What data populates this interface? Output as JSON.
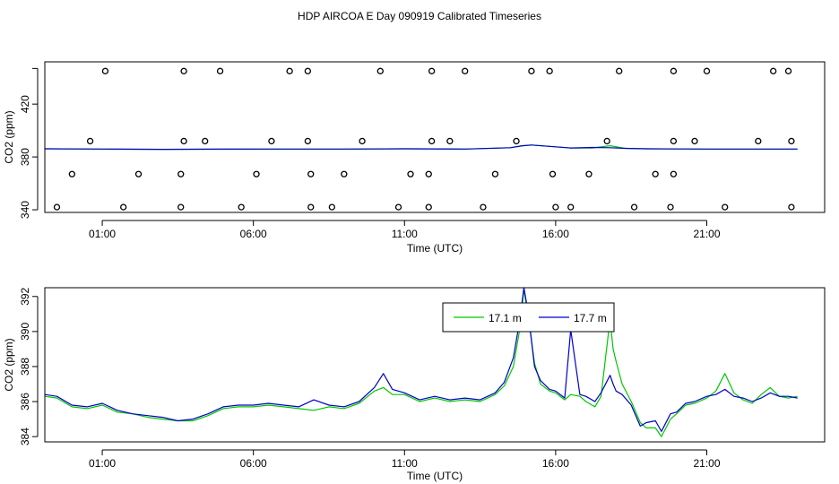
{
  "figure": {
    "title": "HDP AIRCOA E  Day 090919  Calibrated Timeseries"
  },
  "chart_data": [
    {
      "type": "scatter",
      "xlabel": "Time (UTC)",
      "ylabel": "CO2 (ppm)",
      "xlim": [
        -0.9,
        24.9
      ],
      "ylim": [
        338,
        452
      ],
      "xticks": [
        1,
        6,
        11,
        16,
        21
      ],
      "xtick_labels": [
        "01:00",
        "06:00",
        "11:00",
        "16:00",
        "21:00"
      ],
      "yticks": [
        340,
        380,
        420
      ],
      "ytick_labels": [
        "340",
        "380",
        "420"
      ],
      "extra_ytick": 447,
      "series": [
        {
          "label": "calibration-markers",
          "color": "#000000",
          "points": [
            [
              1.1,
              445
            ],
            [
              3.7,
              445
            ],
            [
              4.9,
              445
            ],
            [
              7.2,
              445
            ],
            [
              7.8,
              445
            ],
            [
              10.2,
              445
            ],
            [
              11.9,
              445
            ],
            [
              13.0,
              445
            ],
            [
              15.2,
              445
            ],
            [
              15.8,
              445
            ],
            [
              18.1,
              445
            ],
            [
              19.9,
              445
            ],
            [
              21.0,
              445
            ],
            [
              23.2,
              445
            ],
            [
              23.7,
              445
            ],
            [
              0.6,
              392
            ],
            [
              3.7,
              392
            ],
            [
              4.4,
              392
            ],
            [
              6.6,
              392
            ],
            [
              7.8,
              392
            ],
            [
              9.6,
              392
            ],
            [
              11.9,
              392
            ],
            [
              12.5,
              392
            ],
            [
              14.7,
              392
            ],
            [
              17.7,
              392
            ],
            [
              19.9,
              392
            ],
            [
              20.6,
              392
            ],
            [
              22.7,
              392
            ],
            [
              23.8,
              392
            ],
            [
              0.0,
              367
            ],
            [
              2.2,
              367
            ],
            [
              3.6,
              367
            ],
            [
              6.1,
              367
            ],
            [
              7.9,
              367
            ],
            [
              9.0,
              367
            ],
            [
              11.2,
              367
            ],
            [
              11.8,
              367
            ],
            [
              14.0,
              367
            ],
            [
              15.9,
              367
            ],
            [
              17.1,
              367
            ],
            [
              19.3,
              367
            ],
            [
              19.9,
              367
            ],
            [
              -0.5,
              342
            ],
            [
              1.7,
              342
            ],
            [
              3.6,
              342
            ],
            [
              5.6,
              342
            ],
            [
              7.9,
              342
            ],
            [
              8.6,
              342
            ],
            [
              10.8,
              342
            ],
            [
              11.8,
              342
            ],
            [
              13.6,
              342
            ],
            [
              16.0,
              342
            ],
            [
              16.5,
              342
            ],
            [
              18.6,
              342
            ],
            [
              19.8,
              342
            ],
            [
              21.6,
              342
            ],
            [
              23.8,
              342
            ]
          ]
        },
        {
          "label": "17.1 m",
          "color": "#00c800",
          "x": [
            -0.9,
            1,
            3,
            5,
            7,
            9,
            11,
            13,
            14.5,
            14.9,
            15.2,
            15.8,
            16.5,
            17.2,
            17.8,
            18.3,
            19,
            21,
            23,
            24
          ],
          "y": [
            386.2,
            386,
            385.8,
            385.9,
            386,
            386,
            386.2,
            386,
            387,
            388.5,
            389,
            388,
            386.8,
            386.8,
            388.5,
            386.5,
            386.2,
            386,
            386,
            386
          ]
        },
        {
          "label": "17.7 m",
          "color": "#0000c8",
          "x": [
            -0.9,
            1,
            3,
            5,
            7,
            9,
            11,
            13,
            14.5,
            14.9,
            15.2,
            15.8,
            16.5,
            17.2,
            17.8,
            18.3,
            19,
            21,
            23,
            24
          ],
          "y": [
            386.2,
            386,
            385.8,
            385.9,
            386,
            386,
            386.2,
            386,
            387,
            388.5,
            389,
            388,
            386.8,
            387.2,
            387,
            386.5,
            386.2,
            386,
            386,
            386
          ]
        }
      ]
    },
    {
      "type": "line",
      "xlabel": "Time (UTC)",
      "ylabel": "CO2 (ppm)",
      "xlim": [
        -0.9,
        24.9
      ],
      "ylim": [
        383.7,
        392.5
      ],
      "xticks": [
        1,
        6,
        11,
        16,
        21
      ],
      "xtick_labels": [
        "01:00",
        "06:00",
        "11:00",
        "16:00",
        "21:00"
      ],
      "yticks": [
        384,
        386,
        388,
        390,
        392
      ],
      "ytick_labels": [
        "384",
        "386",
        "388",
        "390",
        "392"
      ],
      "legend": {
        "position": "top-center"
      },
      "series": [
        {
          "name": "17.1 m",
          "color": "#00c800",
          "x": [
            -0.9,
            -0.5,
            0,
            0.5,
            1,
            1.5,
            2,
            2.5,
            3,
            3.5,
            4,
            4.5,
            5,
            5.5,
            6,
            6.5,
            7,
            7.5,
            8,
            8.5,
            9,
            9.5,
            10,
            10.3,
            10.6,
            11,
            11.5,
            12,
            12.5,
            13,
            13.5,
            14,
            14.3,
            14.6,
            14.8,
            14.95,
            15.1,
            15.3,
            15.5,
            15.8,
            16,
            16.3,
            16.5,
            16.8,
            17,
            17.3,
            17.5,
            17.8,
            17.9,
            18,
            18.2,
            18.5,
            18.8,
            19,
            19.3,
            19.5,
            19.8,
            20,
            20.3,
            20.6,
            21,
            21.3,
            21.6,
            21.9,
            22.2,
            22.5,
            22.8,
            23.1,
            23.4,
            23.7,
            24
          ],
          "y": [
            386.3,
            386.2,
            385.7,
            385.6,
            385.8,
            385.4,
            385.3,
            385.1,
            385.0,
            384.9,
            384.9,
            385.2,
            385.6,
            385.7,
            385.7,
            385.8,
            385.7,
            385.6,
            385.5,
            385.7,
            385.6,
            385.9,
            386.6,
            386.8,
            386.4,
            386.4,
            386.0,
            386.2,
            386.0,
            386.1,
            386.0,
            386.4,
            386.9,
            388.0,
            390.0,
            392.4,
            390.8,
            388.2,
            387.0,
            386.6,
            386.5,
            386.1,
            386.4,
            386.3,
            386.0,
            385.7,
            386.3,
            390.7,
            389.0,
            388.3,
            387.0,
            386.0,
            384.8,
            384.5,
            384.5,
            384.0,
            385.0,
            385.3,
            385.8,
            385.9,
            386.2,
            386.6,
            387.6,
            386.5,
            386.1,
            385.9,
            386.4,
            386.8,
            386.3,
            386.2,
            386.3
          ]
        },
        {
          "name": "17.7 m",
          "color": "#0000c8",
          "x": [
            -0.9,
            -0.5,
            0,
            0.5,
            1,
            1.5,
            2,
            2.5,
            3,
            3.5,
            4,
            4.5,
            5,
            5.5,
            6,
            6.5,
            7,
            7.5,
            8,
            8.5,
            9,
            9.5,
            10,
            10.3,
            10.6,
            11,
            11.5,
            12,
            12.5,
            13,
            13.5,
            14,
            14.3,
            14.6,
            14.8,
            14.95,
            15.1,
            15.3,
            15.5,
            15.8,
            16,
            16.3,
            16.5,
            16.8,
            17,
            17.3,
            17.5,
            17.8,
            17.9,
            18,
            18.2,
            18.5,
            18.8,
            19,
            19.3,
            19.5,
            19.8,
            20,
            20.3,
            20.6,
            21,
            21.3,
            21.6,
            21.9,
            22.2,
            22.5,
            22.8,
            23.1,
            23.4,
            23.7,
            24
          ],
          "y": [
            386.4,
            386.3,
            385.8,
            385.7,
            385.9,
            385.5,
            385.3,
            385.2,
            385.1,
            384.9,
            385.0,
            385.3,
            385.7,
            385.8,
            385.8,
            385.9,
            385.8,
            385.7,
            386.1,
            385.8,
            385.7,
            386.0,
            386.8,
            387.6,
            386.7,
            386.5,
            386.1,
            386.3,
            386.1,
            386.2,
            386.1,
            386.5,
            387.1,
            388.5,
            390.5,
            392.5,
            391.0,
            388.0,
            387.2,
            386.7,
            386.6,
            386.2,
            390.1,
            386.4,
            386.3,
            386.0,
            386.5,
            387.5,
            387.0,
            386.6,
            386.4,
            385.8,
            384.6,
            384.8,
            384.9,
            384.3,
            385.3,
            385.4,
            385.9,
            386.0,
            386.3,
            386.4,
            386.7,
            386.3,
            386.2,
            386.0,
            386.2,
            386.5,
            386.3,
            386.3,
            386.2
          ]
        }
      ]
    }
  ]
}
